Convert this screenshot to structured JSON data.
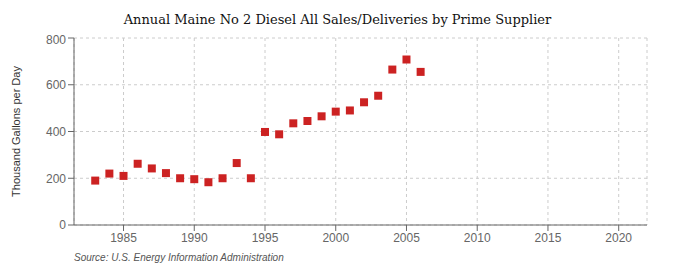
{
  "chart_data": {
    "type": "scatter",
    "title": "Annual Maine No 2 Diesel All Sales/Deliveries by Prime Supplier",
    "y_label": "Thousand Gallons per Day",
    "annotation": "Source: U.S. Energy Information Administration",
    "x": [
      1983,
      1984,
      1985,
      1986,
      1987,
      1988,
      1989,
      1990,
      1991,
      1992,
      1993,
      1994,
      1995,
      1996,
      1997,
      1998,
      1999,
      2000,
      2001,
      2002,
      2003,
      2004,
      2005,
      2006
    ],
    "values": [
      190,
      220,
      210,
      262,
      242,
      222,
      200,
      196,
      183,
      200,
      265,
      200,
      398,
      388,
      435,
      445,
      465,
      485,
      490,
      525,
      553,
      665,
      708,
      655
    ],
    "color": "#cc2222",
    "marker": "square",
    "xlim": [
      1981.5,
      2022
    ],
    "xticks": [
      1985,
      1990,
      1995,
      2000,
      2005,
      2010,
      2015,
      2020
    ],
    "ylim": [
      0,
      800
    ],
    "yticks": [
      0,
      200,
      400,
      600,
      800
    ],
    "grid": true
  }
}
